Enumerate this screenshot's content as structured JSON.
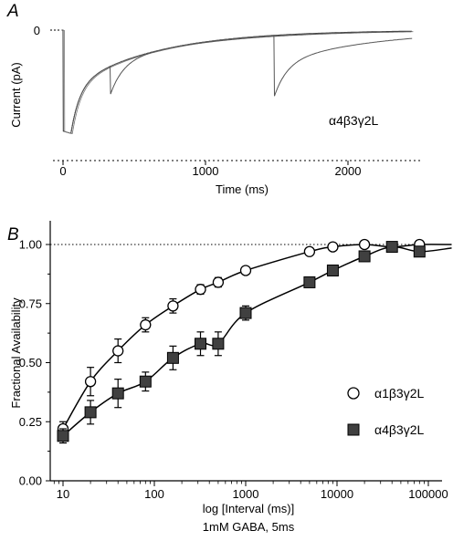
{
  "panel_a": {
    "panel_label": "A",
    "xlabel": "Time (ms)",
    "ylabel": "Current (pA)",
    "y_zero_tick": "0",
    "annotation": "α4β3γ2L",
    "x_ticks": [
      "0",
      "1000",
      "2000"
    ],
    "x_tick_values": [
      0,
      1000,
      2000
    ],
    "xlim": [
      -80,
      2750
    ]
  },
  "panel_b": {
    "panel_label": "B",
    "xlabel": "log [Interval (ms)]",
    "footnote": "1mM GABA, 5ms",
    "ylabel": "Fractional Availability",
    "y_ticks": [
      "0.00",
      "0.25",
      "0.50",
      "0.75",
      "1.00"
    ],
    "y_tick_values": [
      0,
      0.25,
      0.5,
      0.75,
      1.0
    ],
    "x_ticks": [
      "10",
      "100",
      "1000",
      "10000",
      "100000"
    ],
    "x_tick_values": [
      10,
      100,
      1000,
      10000,
      100000
    ]
  },
  "chart_data": [
    {
      "type": "line",
      "title": "",
      "xlabel": "Time (ms)",
      "ylabel": "Current (pA)",
      "xlim": [
        -80,
        2750
      ],
      "ylim": [
        -1,
        0.05
      ],
      "description_series": [
        {
          "name": "",
          "x": [
            50,
            330,
            1480
          ],
          "y": [
            -1,
            -0.62,
            -0.64
          ]
        }
      ]
    },
    {
      "type": "scatter",
      "title": "",
      "xlabel": "log [Interval (ms)]",
      "ylabel": "Fractional Availability",
      "xscale": "log",
      "xlim": [
        7.5,
        200000
      ],
      "ylim": [
        0,
        1.1
      ],
      "reference_line": 1.0,
      "legend_position": "right",
      "series": [
        {
          "name": "α1β3γ2L",
          "marker": "open-circle",
          "x": [
            10,
            20,
            40,
            80,
            160,
            320,
            500,
            1000,
            5000,
            9000,
            20000,
            40000,
            80000
          ],
          "y": [
            0.22,
            0.42,
            0.55,
            0.66,
            0.74,
            0.81,
            0.84,
            0.89,
            0.97,
            0.99,
            1.0,
            0.99,
            1.0
          ],
          "err": [
            0.03,
            0.06,
            0.05,
            0.03,
            0.03,
            0.02,
            0.02,
            0.015,
            0.015,
            0.01,
            0.01,
            0.01,
            0.01
          ]
        },
        {
          "name": "α4β3γ2L",
          "marker": "filled-square",
          "x": [
            10,
            20,
            40,
            80,
            160,
            320,
            500,
            1000,
            5000,
            9000,
            20000,
            40000,
            80000
          ],
          "y": [
            0.19,
            0.29,
            0.37,
            0.42,
            0.52,
            0.58,
            0.58,
            0.71,
            0.84,
            0.89,
            0.95,
            0.99,
            0.97
          ],
          "err": [
            0.03,
            0.05,
            0.06,
            0.04,
            0.05,
            0.05,
            0.05,
            0.03,
            0.02,
            0.015,
            0.015,
            0.01,
            0.02
          ]
        }
      ]
    }
  ],
  "colors": {
    "ink": "#000000",
    "trace_gray": "#555555",
    "square_fill": "#404040"
  }
}
